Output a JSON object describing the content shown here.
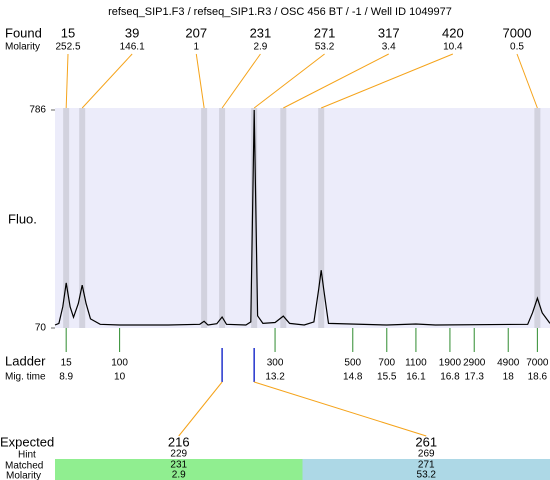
{
  "chart_data": {
    "type": "electropherogram",
    "title": "refseq_SIP1.F3 / refseq_SIP1.R3 / OSC 456 BT / -1 / Well ID 1049977",
    "y_label": "Fluo.",
    "ylim": [
      70,
      786
    ],
    "yticks": [
      70,
      786
    ],
    "xlim": [
      8.67,
      18.86
    ],
    "plot_color": "#ececfa",
    "band_color": "#d2d2de",
    "leader_color": "#f5a31a",
    "found": {
      "label": "Found",
      "molarity_label": "Molarity",
      "sizes": [
        15,
        39,
        207,
        231,
        271,
        317,
        420,
        7000
      ],
      "molarity": [
        252.5,
        146.1,
        1,
        2.9,
        53.2,
        3.4,
        10.4,
        0.5
      ],
      "x": [
        8.9,
        9.23,
        11.74,
        12.11,
        12.77,
        13.37,
        14.15,
        18.6
      ]
    },
    "ladder": {
      "label": "Ladder",
      "time_label": "Mig. time",
      "color": "#2e8b2e",
      "sizes": [
        15,
        100,
        300,
        500,
        700,
        1100,
        1900,
        2900,
        4900,
        7000
      ],
      "x": [
        8.9,
        10,
        13.2,
        14.8,
        15.5,
        16.1,
        16.8,
        17.3,
        18,
        18.6
      ]
    },
    "trace": {
      "color": "#000000",
      "x": [
        8.67,
        8.75,
        8.83,
        8.9,
        8.98,
        9.05,
        9.15,
        9.23,
        9.31,
        9.4,
        9.6,
        10,
        11,
        11.65,
        11.74,
        11.82,
        12,
        12.11,
        12.2,
        12.6,
        12.7,
        12.77,
        12.84,
        12.95,
        13.2,
        13.37,
        13.5,
        13.8,
        14,
        14.1,
        14.15,
        14.2,
        14.3,
        15.5,
        16.1,
        16.5,
        18.4,
        18.5,
        18.6,
        18.7,
        18.86
      ],
      "values": [
        80,
        85,
        140,
        218,
        140,
        105,
        150,
        211,
        150,
        100,
        82,
        80,
        80,
        82,
        92,
        80,
        84,
        106,
        82,
        80,
        90,
        786,
        110,
        85,
        88,
        109,
        85,
        80,
        90,
        200,
        260,
        200,
        85,
        80,
        83,
        80,
        82,
        120,
        168,
        120,
        85
      ]
    },
    "expected": {
      "label": "Expected",
      "hint_label": "Hint",
      "matched_label": "Matched",
      "molarity_label": "Molarity",
      "marker_color": "#2233cc",
      "sizes": [
        216,
        261
      ],
      "hint": [
        229,
        269
      ],
      "matched": [
        231,
        271
      ],
      "molarity": [
        2.9,
        53.2
      ],
      "x": [
        12.11,
        12.77
      ],
      "colors": [
        "#90ee90",
        "#add8e6"
      ]
    }
  }
}
